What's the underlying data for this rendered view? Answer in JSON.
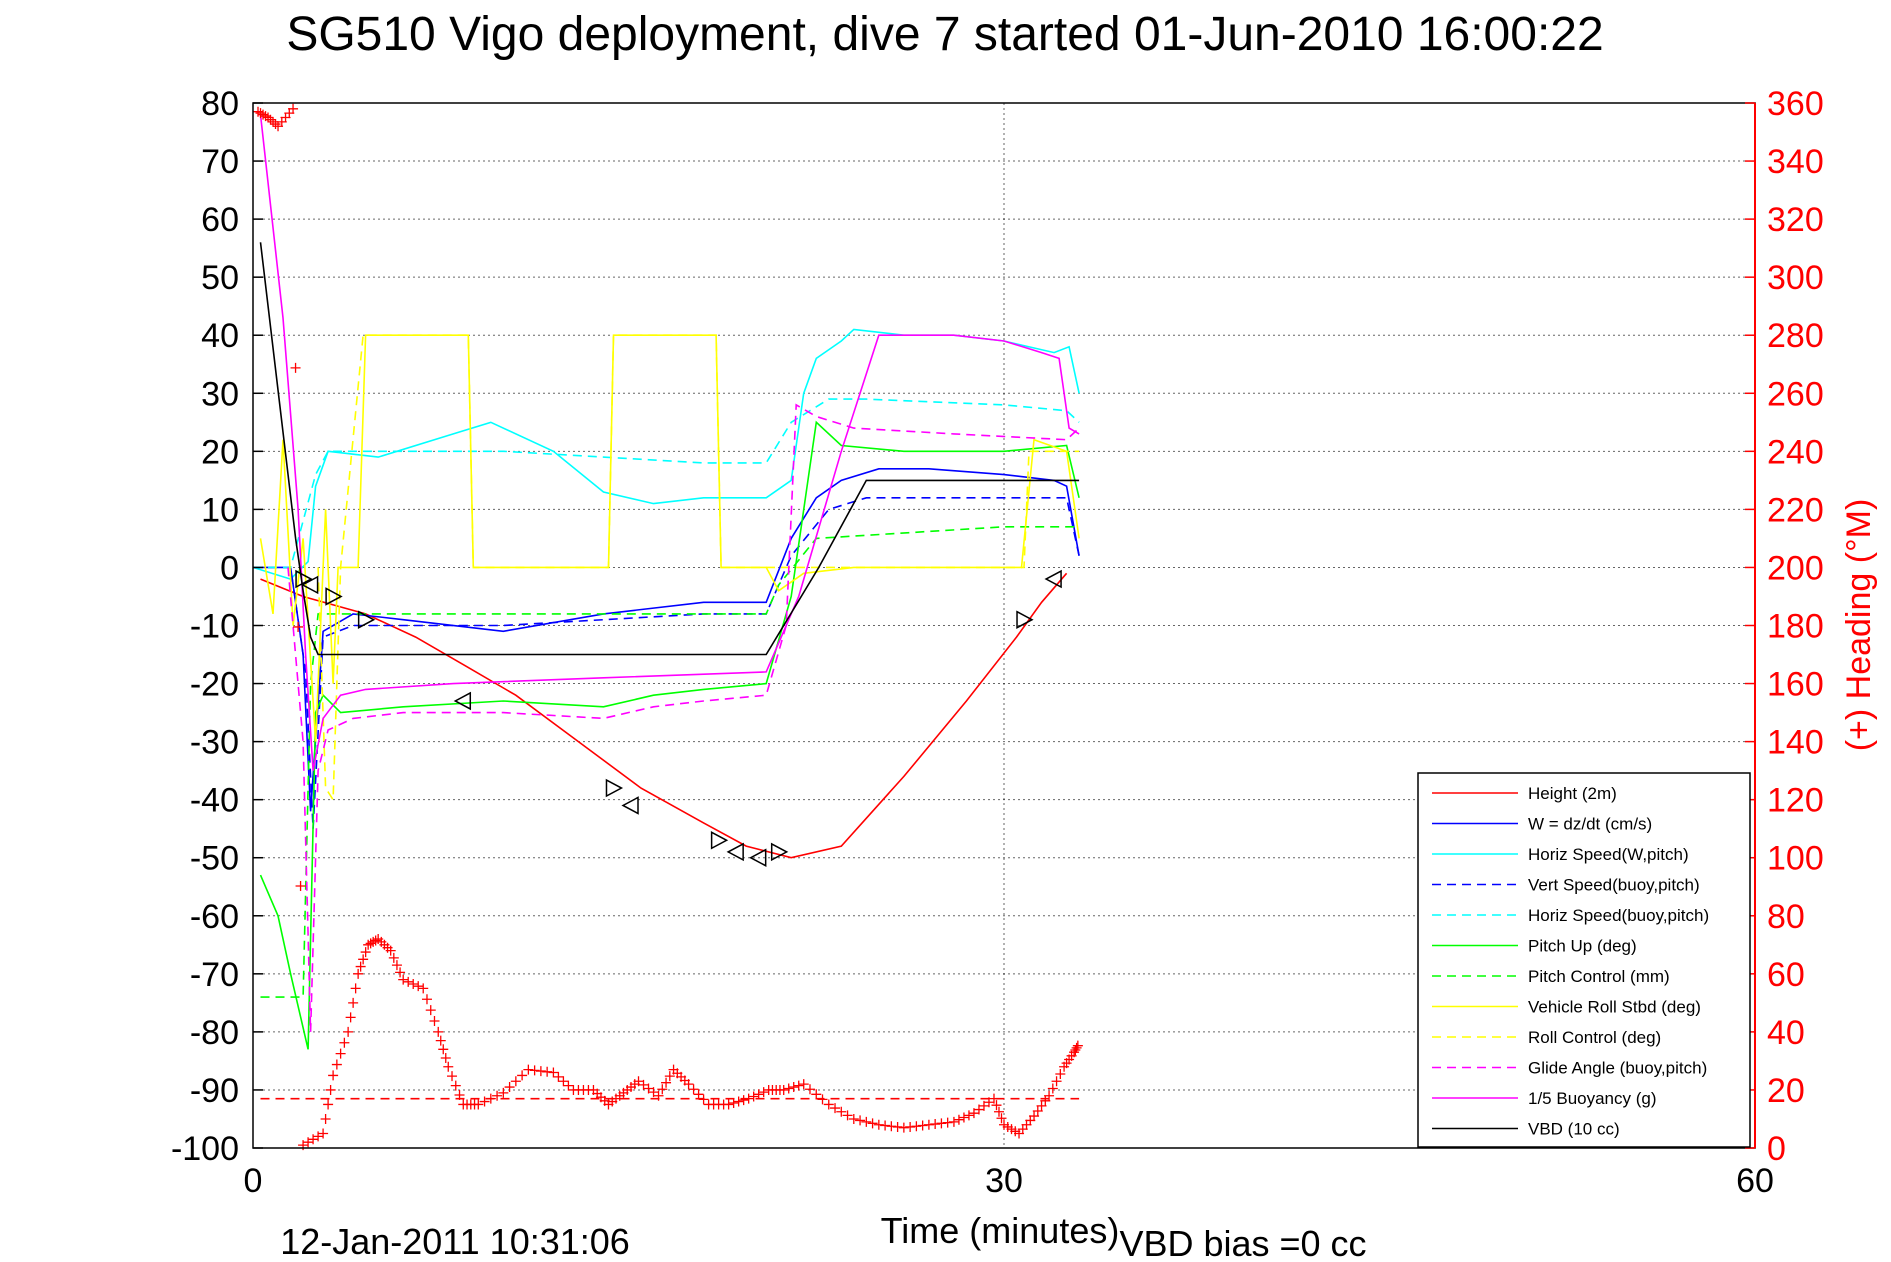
{
  "chart_data": {
    "type": "line",
    "title": "SG510 Vigo deployment, dive 7 started 01-Jun-2010 16:00:22",
    "xlabel": "Time (minutes)",
    "ylabel_right": "(+) Heading (°M)",
    "footer_date": "12-Jan-2011 10:31:06",
    "footer_bias": "VBD bias =0 cc",
    "xlim": [
      0,
      60
    ],
    "ylim": [
      -100,
      80
    ],
    "y2lim": [
      0,
      360
    ],
    "x_ticks": [
      "0",
      "30",
      "60"
    ],
    "y_ticks": [
      "80",
      "70",
      "60",
      "50",
      "40",
      "30",
      "20",
      "10",
      "0",
      "-10",
      "-20",
      "-30",
      "-40",
      "-50",
      "-60",
      "-70",
      "-80",
      "-90",
      "-100"
    ],
    "y2_ticks": [
      "360",
      "340",
      "320",
      "300",
      "280",
      "260",
      "240",
      "220",
      "200",
      "180",
      "160",
      "140",
      "120",
      "100",
      "80",
      "60",
      "40",
      "20",
      "0"
    ],
    "grid": true,
    "legend_position": "bottom-right",
    "colors": {
      "red": "#ff0000",
      "blue": "#0000ff",
      "cyan": "#00ffff",
      "green": "#00ff00",
      "yellow": "#ffff00",
      "magenta": "#ff00ff",
      "black": "#000000"
    },
    "series": [
      {
        "name": "Height (2m)",
        "color": "#ff0000",
        "style": "solid",
        "x": [
          0.3,
          2.0,
          4.5,
          6.5,
          8.5,
          10.5,
          13,
          15.5,
          18,
          19.7,
          21.5,
          23.5,
          26,
          28.5,
          30.5,
          31.5,
          32.5
        ],
        "y": [
          -2,
          -5,
          -8,
          -12,
          -17,
          -22,
          -30,
          -38,
          -44,
          -48,
          -50,
          -48,
          -36,
          -23,
          -12,
          -6,
          -1
        ]
      },
      {
        "name": "W = dz/dt (cm/s)",
        "color": "#0000ff",
        "style": "solid",
        "x": [
          0,
          1.5,
          2.0,
          2.3,
          2.8,
          4,
          6,
          10,
          14,
          18,
          20.5,
          21.5,
          22.5,
          23.5,
          25,
          27,
          30,
          32,
          32.5,
          33
        ],
        "y": [
          0,
          0,
          -15,
          -42,
          -11,
          -8,
          -9,
          -11,
          -8,
          -6,
          -6,
          5,
          12,
          15,
          17,
          17,
          16,
          15,
          14,
          2
        ]
      },
      {
        "name": "Horiz Speed(W,pitch)",
        "color": "#00ffff",
        "style": "solid",
        "x": [
          0,
          1.5,
          2.2,
          2.5,
          3,
          5,
          8,
          9.5,
          12,
          14,
          16,
          18,
          20.5,
          21.5,
          22,
          22.5,
          23.5,
          24,
          26,
          28,
          30,
          32,
          32.6,
          33
        ],
        "y": [
          0,
          -2,
          1,
          14,
          20,
          19,
          23,
          25,
          20,
          13,
          11,
          12,
          12,
          15,
          30,
          36,
          39,
          41,
          40,
          40,
          39,
          37,
          38,
          30
        ]
      },
      {
        "name": "Vert Speed(buoy,pitch)",
        "color": "#0000ff",
        "style": "dashed",
        "x": [
          0,
          1.5,
          2.1,
          2.4,
          2.8,
          4,
          10,
          18,
          20.5,
          21.5,
          23,
          24.5,
          30,
          32.5,
          33
        ],
        "y": [
          0,
          0,
          -18,
          -45,
          -12,
          -10,
          -10,
          -8,
          -8,
          2,
          10,
          12,
          12,
          12,
          2
        ]
      },
      {
        "name": "Horiz Speed(buoy,pitch)",
        "color": "#00ffff",
        "style": "dashed",
        "x": [
          0,
          1.5,
          2.5,
          3,
          10,
          18,
          20.5,
          21.5,
          23,
          24.5,
          30,
          32.5,
          33
        ],
        "y": [
          0,
          0,
          16,
          20,
          20,
          18,
          18,
          25,
          29,
          29,
          28,
          27,
          25
        ]
      },
      {
        "name": "Pitch Up (deg)",
        "color": "#00ff00",
        "style": "solid",
        "x": [
          0.3,
          1.0,
          1.5,
          2.2,
          2.5,
          2.8,
          3.5,
          6,
          10,
          14,
          16,
          18,
          20.5,
          21.5,
          22.5,
          23.5,
          26,
          30,
          32.5,
          33
        ],
        "y": [
          -53,
          -60,
          -70,
          -83,
          -25,
          -22,
          -25,
          -24,
          -23,
          -24,
          -22,
          -21,
          -20,
          -5,
          25,
          21,
          20,
          20,
          21,
          12
        ]
      },
      {
        "name": "Pitch Control (mm)",
        "color": "#00ff00",
        "style": "dashed",
        "x": [
          0.3,
          2.0,
          2.3,
          2.6,
          10,
          20.5,
          21.0,
          22.5,
          30,
          33
        ],
        "y": [
          -74,
          -74,
          -20,
          -8,
          -8,
          -8,
          -3,
          5,
          7,
          7
        ]
      },
      {
        "name": "Vehicle Roll Stbd (deg)",
        "color": "#ffff00",
        "style": "solid",
        "x": [
          0.3,
          0.8,
          1.2,
          1.6,
          2.0,
          2.5,
          2.9,
          3.2,
          3.4,
          3.6,
          4.2,
          4.5,
          8.6,
          8.8,
          14.2,
          14.4,
          18.5,
          18.7,
          20.5,
          21,
          22,
          24,
          30,
          30.7,
          31.2,
          32.5,
          33
        ],
        "y": [
          5,
          -8,
          22,
          -10,
          5,
          -30,
          10,
          -20,
          0,
          0,
          0,
          40,
          40,
          0,
          0,
          40,
          40,
          0,
          0,
          -4,
          -1,
          0,
          0,
          0,
          22,
          20,
          5
        ]
      },
      {
        "name": "Roll Control (deg)",
        "color": "#ffff00",
        "style": "dashed",
        "x": [
          2.6,
          2.9,
          3.2,
          3.5,
          4.4,
          8.6,
          8.8,
          14.2,
          14.4,
          18.5,
          18.7,
          20.5,
          30.8,
          31.0,
          33
        ],
        "y": [
          0,
          -38,
          -40,
          0,
          40,
          40,
          0,
          0,
          40,
          40,
          0,
          0,
          0,
          20,
          20
        ]
      },
      {
        "name": "Glide Angle (buoy,pitch)",
        "color": "#ff00ff",
        "style": "dashed",
        "x": [
          1.4,
          2.0,
          2.3,
          2.6,
          3.0,
          4,
          6,
          10,
          14,
          16,
          18,
          20.5,
          21.3,
          21.7,
          22.5,
          24,
          28,
          32.5,
          33
        ],
        "y": [
          0,
          -30,
          -80,
          -35,
          -28,
          -26,
          -25,
          -25,
          -26,
          -24,
          -23,
          -22,
          -10,
          28,
          26,
          24,
          23,
          22,
          24
        ]
      },
      {
        "name": "1/5 Buoyancy (g)",
        "color": "#ff00ff",
        "style": "solid",
        "x": [
          0.3,
          1.2,
          1.8,
          2.1,
          2.4,
          2.8,
          3.5,
          4.5,
          8,
          14,
          20.5,
          21.8,
          23.5,
          25,
          28,
          30,
          31.5,
          32.2,
          32.6,
          33
        ],
        "y": [
          78,
          43,
          10,
          -15,
          -35,
          -26,
          -22,
          -21,
          -20,
          -19,
          -18,
          -5,
          20,
          40,
          40,
          39,
          37,
          36,
          24,
          23
        ]
      },
      {
        "name": "VBD (10 cc)",
        "color": "#000000",
        "style": "solid",
        "x": [
          0.3,
          1.7,
          2.0,
          2.3,
          2.6,
          8,
          14,
          20.5,
          22.6,
          24.5,
          30,
          33
        ],
        "y": [
          56,
          5,
          -4,
          -12,
          -15,
          -15,
          -15,
          -15,
          0,
          15,
          15,
          15
        ]
      },
      {
        "name": "Heading",
        "color": "#ff0000",
        "style": "plus",
        "axis": "right",
        "x": [
          0.2,
          0.6,
          1,
          1.6,
          2,
          2.8,
          3.2,
          3.8,
          4.2,
          4.6,
          5,
          5.5,
          6,
          6.8,
          7.4,
          7.8,
          8.4,
          9,
          10,
          11,
          12,
          12.8,
          13.6,
          14.2,
          14.8,
          15.4,
          16.2,
          16.8,
          17.4,
          18.2,
          19,
          19.8,
          20.6,
          21.2,
          22,
          23,
          24,
          25,
          26,
          27,
          28,
          28.8,
          29.6,
          30,
          30.6,
          31.2,
          31.8,
          32.4,
          32.8,
          33
        ],
        "y": [
          357,
          355,
          352,
          358,
          1,
          5,
          25,
          40,
          60,
          70,
          72,
          68,
          58,
          55,
          40,
          28,
          15,
          15,
          19,
          27,
          26,
          20,
          20,
          15,
          19,
          23,
          18,
          27,
          22,
          15,
          15,
          17,
          20,
          20,
          22,
          15,
          10,
          8,
          7,
          8,
          9,
          12,
          17,
          8,
          5,
          11,
          18,
          28,
          33,
          36
        ]
      },
      {
        "name": "Heading ref",
        "color": "#ff0000",
        "style": "dashed",
        "axis": "right",
        "x": [
          0.3,
          33
        ],
        "y": [
          17,
          17
        ]
      }
    ],
    "markers_right": {
      "color": "#000000",
      "x": [
        2.0,
        2.3,
        3.2,
        4.5,
        8.4,
        14.4,
        15.1,
        18.6,
        19.3,
        20.2,
        21.0
      ],
      "y": [
        -2,
        -3,
        -5,
        -9,
        -23,
        -38,
        -41,
        -47,
        -49,
        -50,
        -49
      ],
      "dirs": [
        "r",
        "l",
        "r",
        "r",
        "l",
        "r",
        "l",
        "r",
        "l",
        "l",
        "r"
      ]
    },
    "markers_right2": {
      "x": [
        30.8,
        32.0
      ],
      "y": [
        -9,
        -2
      ],
      "dirs": [
        "r",
        "l"
      ]
    }
  }
}
